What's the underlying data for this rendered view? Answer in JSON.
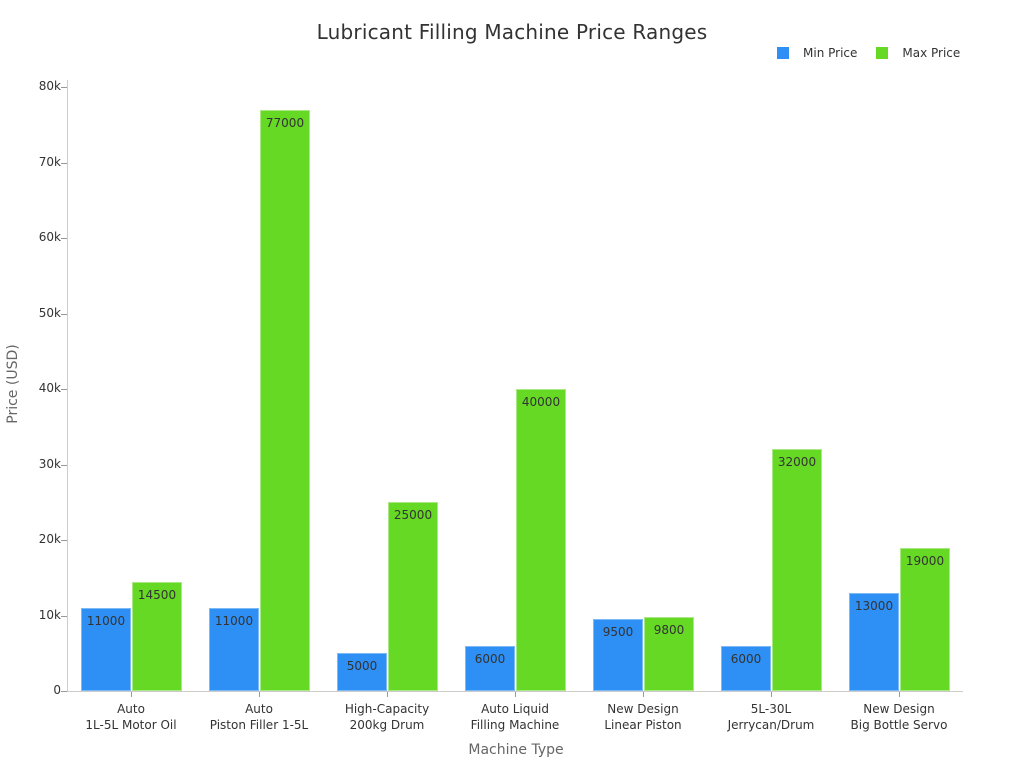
{
  "chart_data": {
    "type": "bar",
    "title": "Lubricant Filling Machine Price Ranges",
    "xlabel": "Machine Type",
    "ylabel": "Price (USD)",
    "ylim": [
      0,
      80000
    ],
    "yticks": [
      "0",
      "10k",
      "20k",
      "30k",
      "40k",
      "50k",
      "60k",
      "70k",
      "80k"
    ],
    "legend_position": "top-right",
    "grid": false,
    "categories": [
      [
        "Auto",
        "1L-5L Motor Oil"
      ],
      [
        "Auto",
        "Piston Filler 1-5L"
      ],
      [
        "High-Capacity",
        "200kg Drum"
      ],
      [
        "Auto Liquid",
        "Filling Machine"
      ],
      [
        "New Design",
        "Linear Piston"
      ],
      [
        "5L-30L",
        "Jerrycan/Drum"
      ],
      [
        "New Design",
        "Big Bottle Servo"
      ]
    ],
    "series": [
      {
        "name": "Min Price",
        "color": "#2e8ff5",
        "values": [
          11000,
          11000,
          5000,
          6000,
          9500,
          6000,
          13000
        ]
      },
      {
        "name": "Max Price",
        "color": "#66d924",
        "values": [
          14500,
          77000,
          25000,
          40000,
          9800,
          32000,
          19000
        ]
      }
    ]
  }
}
